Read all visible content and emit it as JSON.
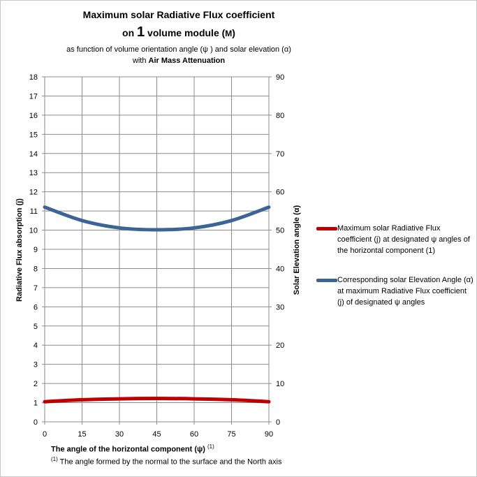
{
  "title": {
    "line1": "Maximum solar Radiative Flux  coefficient",
    "line2_pre": "on ",
    "line2_num": "1",
    "line2_mid": " volume module (",
    "line2_m": "M",
    "line2_post": ")",
    "sub1": "as function of volume orientation angle  (ψ ) and solar elevation  (α)",
    "sub2_pre": "with ",
    "sub2_bold": "Air Mass Attenuation"
  },
  "footnote": {
    "mark": "(1)",
    "text": " The angle formed by the normal to the surface  and the North axis"
  },
  "chart_data": {
    "type": "line",
    "xlabel": "The angle  of the horizontal component  (ψ) ",
    "xlabel_note": "(1)",
    "ylabel": "Radiative  Flux absorption (j)",
    "y2label": "Solar Elevation  angle (α)",
    "x": [
      0,
      15,
      30,
      45,
      60,
      75,
      90
    ],
    "x_ticks": [
      "0",
      "15",
      "30",
      "45",
      "60",
      "75",
      "90"
    ],
    "xlim": [
      0,
      90
    ],
    "ylim": [
      0,
      18
    ],
    "y_ticks": [
      "0",
      "1",
      "2",
      "3",
      "4",
      "5",
      "6",
      "7",
      "8",
      "9",
      "10",
      "11",
      "12",
      "13",
      "14",
      "15",
      "16",
      "17",
      "18"
    ],
    "y2lim": [
      0,
      90
    ],
    "y2_ticks": [
      "0",
      "10",
      "20",
      "30",
      "40",
      "50",
      "60",
      "70",
      "80",
      "90"
    ],
    "grid": true,
    "legend_position": "right",
    "series": [
      {
        "name": "Maximum solar Radiative  Flux coefficient (j) at designated ψ angles of the horizontal component (1)",
        "axis": "left",
        "color": "#c00000",
        "values": [
          1.05,
          1.15,
          1.2,
          1.22,
          1.2,
          1.15,
          1.05
        ]
      },
      {
        "name": "Corresponding solar Elevation Angle (α) at maximum  Radiative Flux coefficient (j) of designated ψ angles",
        "axis": "right",
        "color": "#3c6496",
        "values": [
          56,
          52.5,
          50.6,
          50.1,
          50.6,
          52.5,
          56
        ]
      }
    ]
  }
}
